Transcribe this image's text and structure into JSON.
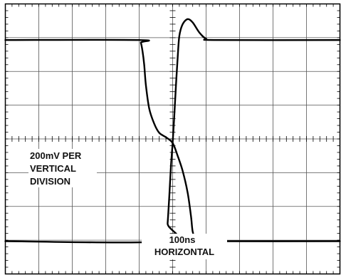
{
  "chart_data": {
    "type": "line",
    "grid": true,
    "grid_divisions": {
      "horizontal": 10,
      "vertical": 8
    },
    "minor_ticks_per_division": 5,
    "x_unit_per_division": "100ns",
    "y_unit_per_division": "200mV",
    "xlim_divisions": [
      -5,
      5
    ],
    "ylim_divisions": [
      -4,
      4
    ],
    "series": [
      {
        "points": [
          [
            -5.0,
            2.93
          ],
          [
            -1.0,
            2.93
          ],
          [
            -0.95,
            2.85
          ],
          [
            -0.9,
            2.6
          ],
          [
            -0.85,
            2.2
          ],
          [
            -0.8,
            1.6
          ],
          [
            -0.7,
            0.9
          ],
          [
            -0.55,
            0.45
          ],
          [
            -0.4,
            0.18
          ],
          [
            -0.2,
            0.05
          ],
          [
            0.0,
            -0.12
          ],
          [
            0.15,
            -0.5
          ],
          [
            0.3,
            -0.95
          ],
          [
            0.45,
            -1.6
          ],
          [
            0.55,
            -2.3
          ],
          [
            0.6,
            -2.75
          ],
          [
            0.7,
            -3.0
          ],
          [
            0.9,
            -3.03
          ],
          [
            5.0,
            -3.03
          ]
        ]
      },
      {
        "points": [
          [
            -5.0,
            -3.03
          ],
          [
            -0.2,
            -3.03
          ],
          [
            -0.15,
            -2.5
          ],
          [
            -0.1,
            -1.7
          ],
          [
            -0.05,
            -0.8
          ],
          [
            0.0,
            -0.12
          ],
          [
            0.05,
            0.7
          ],
          [
            0.1,
            1.6
          ],
          [
            0.15,
            2.4
          ],
          [
            0.2,
            3.05
          ],
          [
            0.3,
            3.4
          ],
          [
            0.45,
            3.55
          ],
          [
            0.6,
            3.45
          ],
          [
            0.8,
            3.15
          ],
          [
            1.0,
            2.97
          ],
          [
            1.3,
            2.93
          ],
          [
            5.0,
            2.93
          ]
        ]
      }
    ],
    "annotations": [
      {
        "lines": [
          "200mV PER",
          "VERTICAL",
          "DIVISION"
        ]
      },
      {
        "lines": [
          "100ns",
          "HORIZONTAL"
        ]
      }
    ]
  }
}
